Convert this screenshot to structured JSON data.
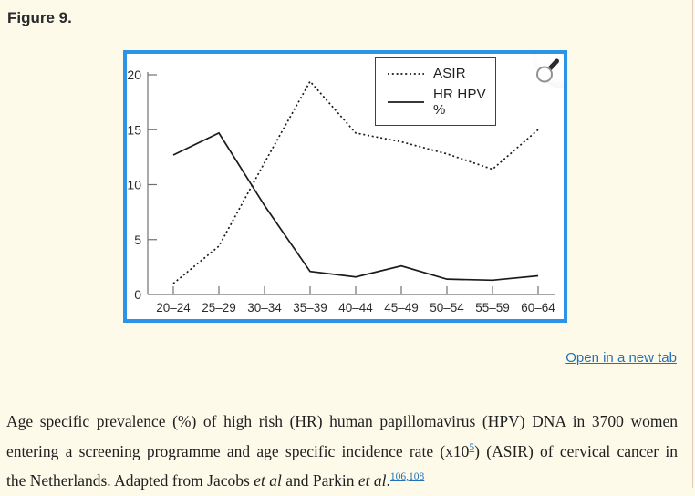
{
  "page": {
    "figure_title": "Figure 9.",
    "open_link_label": "Open in a new tab"
  },
  "figure": {
    "zoom_icon": "magnifier"
  },
  "caption": {
    "line1": "Age specific prevalence (%) of high rish (HR) human papillomavirus (HPV) DNA in 3700 women",
    "line2_pre": "entering a screening programme and age specific incidence rate (x10",
    "line2_sup_ref": "5",
    "line2_post": ") (ASIR) of cervical cancer in",
    "line3_pre": "the Netherlands. Adapted from Jacobs ",
    "line3_italic1": "et al",
    "line3_mid": " and Parkin ",
    "line3_italic2": "et al",
    "line3_period": ".",
    "line3_sup_ref": "106,108"
  },
  "chart_data": {
    "type": "line",
    "title": "",
    "xlabel": "",
    "ylabel": "",
    "categories": [
      "20–24",
      "25–29",
      "30–34",
      "35–39",
      "40–44",
      "45–49",
      "50–54",
      "55–59",
      "60–64"
    ],
    "series": [
      {
        "name": "ASIR",
        "style": "dotted",
        "values": [
          1.0,
          4.4,
          12.0,
          19.4,
          14.7,
          13.9,
          12.8,
          11.4,
          15.0
        ]
      },
      {
        "name": "HR HPV %",
        "style": "solid",
        "values": [
          12.7,
          14.7,
          8.1,
          2.1,
          1.6,
          2.6,
          1.4,
          1.3,
          1.7
        ]
      }
    ],
    "ylim": [
      0,
      20
    ],
    "yticks": [
      0,
      5,
      10,
      15,
      20
    ],
    "grid": false,
    "legend_position": "top-right"
  },
  "colors": {
    "page_bg": "#fdfaea",
    "figure_border": "#2d93e6",
    "link": "#2272b9",
    "series_line": "#1b1b1b"
  }
}
